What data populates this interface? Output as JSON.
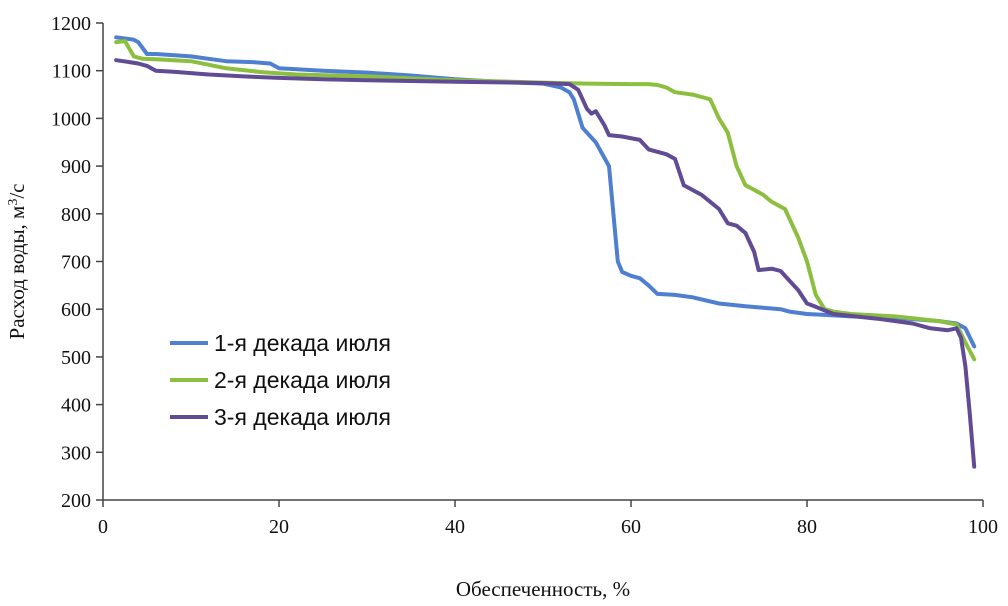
{
  "chart_data": {
    "type": "line",
    "title": "",
    "xlabel": "Обеспеченность, %",
    "ylabel_prefix": "Расход воды, м",
    "ylabel_sup": "3",
    "ylabel_suffix": "/с",
    "xlim": [
      0,
      100
    ],
    "ylim": [
      200,
      1200
    ],
    "xticks": [
      0,
      20,
      40,
      60,
      80,
      100
    ],
    "yticks": [
      200,
      300,
      400,
      500,
      600,
      700,
      800,
      900,
      1000,
      1100,
      1200
    ],
    "grid": false,
    "legend_position": "center-left",
    "series": [
      {
        "name": "1-я декада июля",
        "color": "#4f7fcf",
        "x": [
          1.5,
          3.5,
          4,
          5,
          6,
          10,
          12,
          14,
          17,
          19,
          20,
          25,
          30,
          35,
          40,
          45,
          50,
          52,
          53,
          53.5,
          54.5,
          56,
          57.5,
          58,
          58.5,
          59,
          60,
          61,
          62,
          63,
          65,
          67,
          70,
          73,
          75,
          77,
          78,
          80,
          82,
          85,
          90,
          95,
          97,
          98,
          99
        ],
        "y": [
          1170,
          1165,
          1160,
          1135,
          1135,
          1130,
          1125,
          1120,
          1118,
          1115,
          1105,
          1100,
          1096,
          1090,
          1082,
          1077,
          1073,
          1065,
          1055,
          1040,
          980,
          950,
          900,
          800,
          700,
          678,
          670,
          665,
          650,
          632,
          630,
          625,
          612,
          606,
          603,
          600,
          595,
          590,
          588,
          585,
          582,
          575,
          570,
          560,
          522
        ]
      },
      {
        "name": "2-я декада июля",
        "color": "#8cbf3f",
        "x": [
          1.5,
          2.5,
          3.5,
          4.5,
          6,
          10,
          14,
          18,
          22,
          30,
          40,
          50,
          55,
          60,
          62,
          63,
          64,
          65,
          67,
          69,
          70,
          71,
          72,
          73,
          74,
          75,
          76,
          77.5,
          78,
          79,
          80,
          81,
          82,
          83,
          85,
          90,
          95,
          97,
          98,
          99
        ],
        "y": [
          1160,
          1162,
          1130,
          1125,
          1124,
          1120,
          1105,
          1097,
          1092,
          1088,
          1080,
          1075,
          1073,
          1072,
          1072,
          1070,
          1065,
          1055,
          1050,
          1040,
          1000,
          970,
          900,
          860,
          850,
          840,
          825,
          810,
          790,
          750,
          700,
          630,
          600,
          595,
          590,
          585,
          575,
          568,
          530,
          495
        ]
      },
      {
        "name": "3-я декада июля",
        "color": "#614b94",
        "x": [
          1.5,
          3,
          4,
          5,
          6,
          8,
          10,
          12,
          16,
          20,
          25,
          30,
          40,
          50,
          53,
          54,
          55,
          55.5,
          56,
          57,
          57.5,
          59,
          61,
          62,
          63,
          64,
          65,
          66,
          68,
          70,
          71,
          72,
          73,
          74,
          74.5,
          76,
          77,
          78,
          79,
          80,
          81,
          83,
          88,
          92,
          94,
          96,
          97,
          97.5,
          98,
          98.5,
          99
        ],
        "y": [
          1122,
          1118,
          1115,
          1110,
          1100,
          1098,
          1095,
          1092,
          1088,
          1085,
          1082,
          1080,
          1077,
          1074,
          1072,
          1060,
          1020,
          1010,
          1015,
          985,
          965,
          962,
          955,
          935,
          930,
          925,
          915,
          860,
          840,
          810,
          780,
          775,
          760,
          720,
          682,
          685,
          680,
          660,
          640,
          612,
          605,
          590,
          580,
          570,
          560,
          556,
          560,
          540,
          480,
          380,
          270
        ]
      }
    ]
  }
}
